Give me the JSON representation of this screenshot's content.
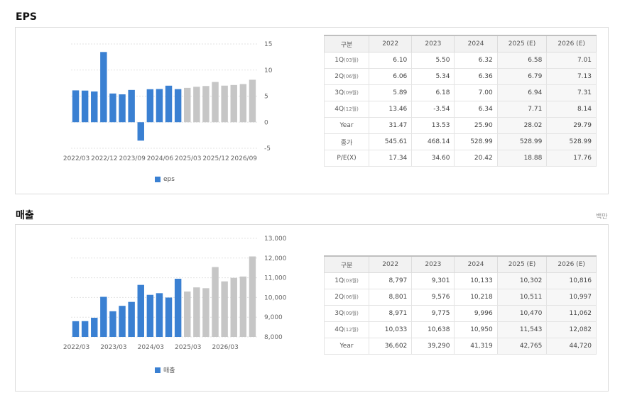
{
  "sections": {
    "eps": {
      "title": "EPS"
    },
    "sales": {
      "title": "매출",
      "unit": "백만"
    }
  },
  "eps_table": {
    "headers": [
      "구분",
      "2022",
      "2023",
      "2024",
      "2025 (E)",
      "2026 (E)"
    ],
    "rows": [
      {
        "label": "1Q",
        "sub": "(03월)",
        "values": [
          "6.10",
          "5.50",
          "6.32",
          "6.58",
          "7.01"
        ]
      },
      {
        "label": "2Q",
        "sub": "(06월)",
        "values": [
          "6.06",
          "5.34",
          "6.36",
          "6.79",
          "7.13"
        ]
      },
      {
        "label": "3Q",
        "sub": "(09월)",
        "values": [
          "5.89",
          "6.18",
          "7.00",
          "6.94",
          "7.31"
        ]
      },
      {
        "label": "4Q",
        "sub": "(12월)",
        "values": [
          "13.46",
          "-3.54",
          "6.34",
          "7.71",
          "8.14"
        ]
      },
      {
        "label": "Year",
        "sub": "",
        "values": [
          "31.47",
          "13.53",
          "25.90",
          "28.02",
          "29.79"
        ]
      },
      {
        "label": "종가",
        "sub": "",
        "values": [
          "545.61",
          "468.14",
          "528.99",
          "528.99",
          "528.99"
        ]
      },
      {
        "label": "P/E(X)",
        "sub": "",
        "values": [
          "17.34",
          "34.60",
          "20.42",
          "18.88",
          "17.76"
        ]
      }
    ]
  },
  "sales_table": {
    "headers": [
      "구분",
      "2022",
      "2023",
      "2024",
      "2025 (E)",
      "2026 (E)"
    ],
    "rows": [
      {
        "label": "1Q",
        "sub": "(03월)",
        "values": [
          "8,797",
          "9,301",
          "10,133",
          "10,302",
          "10,816"
        ]
      },
      {
        "label": "2Q",
        "sub": "(06월)",
        "values": [
          "8,801",
          "9,576",
          "10,218",
          "10,511",
          "10,997"
        ]
      },
      {
        "label": "3Q",
        "sub": "(09월)",
        "values": [
          "8,971",
          "9,775",
          "9,996",
          "10,470",
          "11,062"
        ]
      },
      {
        "label": "4Q",
        "sub": "(12월)",
        "values": [
          "10,033",
          "10,638",
          "10,950",
          "11,543",
          "12,082"
        ]
      },
      {
        "label": "Year",
        "sub": "",
        "values": [
          "36,602",
          "39,290",
          "41,319",
          "42,765",
          "44,720"
        ]
      }
    ]
  },
  "colors": {
    "actual": "#3a80d2",
    "estimate": "#c6c6c6",
    "grid": "#e3e3e3",
    "axis_text": "#666666"
  },
  "chart_data": [
    {
      "type": "bar",
      "title": "",
      "legend": {
        "label": "eps",
        "position": "bottom"
      },
      "categories": [
        "2022/03",
        "2022/06",
        "2022/09",
        "2022/12",
        "2023/03",
        "2023/06",
        "2023/09",
        "2023/12",
        "2024/03",
        "2024/06",
        "2024/09",
        "2024/12",
        "2025/03",
        "2025/06",
        "2025/09",
        "2025/12",
        "2026/03",
        "2026/06",
        "2026/09",
        "2026/12"
      ],
      "x_tick_labels": [
        "2022/03",
        "2022/12",
        "2023/09",
        "2024/06",
        "2025/03",
        "2025/12",
        "2026/09"
      ],
      "series": [
        {
          "name": "eps",
          "values": [
            6.1,
            6.06,
            5.89,
            13.46,
            5.5,
            5.34,
            6.18,
            -3.54,
            6.32,
            6.36,
            7.0,
            6.34,
            6.58,
            6.79,
            6.94,
            7.71,
            7.01,
            7.13,
            7.31,
            8.14
          ]
        }
      ],
      "estimate_from_index": 12,
      "ylim": [
        -5,
        15
      ],
      "y_ticks": [
        15,
        10,
        5,
        0,
        -5
      ],
      "y_tick_labels": [
        "15",
        "10",
        "5",
        "0",
        "-5"
      ],
      "y_axis_side": "right",
      "grid": true
    },
    {
      "type": "bar",
      "title": "",
      "legend": {
        "label": "매출",
        "position": "bottom"
      },
      "categories": [
        "2022/03",
        "2022/06",
        "2022/09",
        "2022/12",
        "2023/03",
        "2023/06",
        "2023/09",
        "2023/12",
        "2024/03",
        "2024/06",
        "2024/09",
        "2024/12",
        "2025/03",
        "2025/06",
        "2025/09",
        "2025/12",
        "2026/03",
        "2026/06",
        "2026/09",
        "2026/12"
      ],
      "x_tick_labels": [
        "2022/03",
        "2023/03",
        "2024/03",
        "2025/03",
        "2026/03"
      ],
      "series": [
        {
          "name": "매출",
          "values": [
            8797,
            8801,
            8971,
            10033,
            9301,
            9576,
            9775,
            10638,
            10133,
            10218,
            9996,
            10950,
            10302,
            10511,
            10470,
            11543,
            10816,
            10997,
            11062,
            12082
          ]
        }
      ],
      "estimate_from_index": 12,
      "ylim": [
        8000,
        13000
      ],
      "y_ticks": [
        13000,
        12000,
        11000,
        10000,
        9000,
        8000
      ],
      "y_tick_labels": [
        "13,000",
        "12,000",
        "11,000",
        "10,000",
        "9,000",
        "8,000"
      ],
      "y_axis_side": "right",
      "grid": true
    }
  ]
}
